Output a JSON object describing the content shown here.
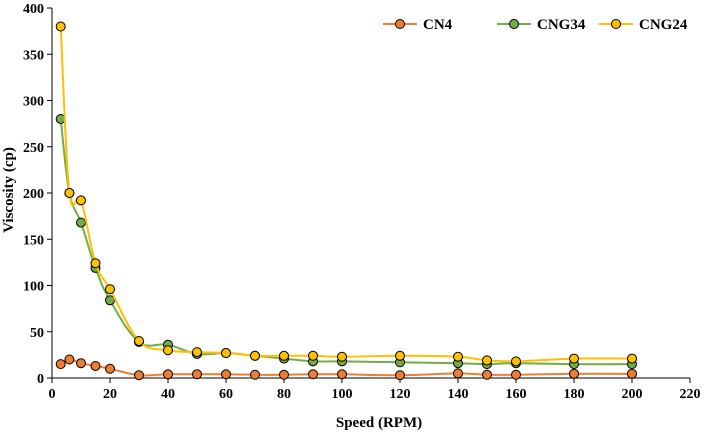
{
  "chart_data": {
    "type": "line",
    "title": "",
    "xlabel": "Speed (RPM)",
    "ylabel": "Viscosity (cp)",
    "xlim": [
      0,
      220
    ],
    "ylim": [
      0,
      400
    ],
    "xticks": [
      0,
      20,
      40,
      60,
      80,
      100,
      120,
      140,
      160,
      180,
      200,
      220
    ],
    "yticks": [
      0,
      50,
      100,
      150,
      200,
      250,
      300,
      350,
      400
    ],
    "grid": false,
    "legend_position": "top-right",
    "series": [
      {
        "name": "CN4",
        "line_color": "#ED7D31",
        "marker_color": "#ED7D31",
        "x": [
          3,
          6,
          10,
          15,
          20,
          30,
          40,
          50,
          60,
          70,
          80,
          90,
          100,
          120,
          140,
          150,
          160,
          180,
          200
        ],
        "y": [
          15,
          20,
          16,
          13,
          10,
          3,
          4,
          4,
          4,
          3.5,
          3.5,
          4,
          4,
          3,
          5,
          3.5,
          3.5,
          4.5,
          4.5
        ]
      },
      {
        "name": "CNG34",
        "line_color": "#70AD47",
        "marker_color": "#70AD47",
        "x": [
          3,
          6,
          10,
          15,
          20,
          30,
          40,
          50,
          60,
          70,
          80,
          90,
          100,
          120,
          140,
          150,
          160,
          180,
          200
        ],
        "y": [
          280,
          200,
          168,
          119,
          84,
          39,
          36,
          26,
          27,
          24,
          21,
          18,
          18,
          17,
          16,
          15,
          16,
          15,
          15
        ]
      },
      {
        "name": "CNG24",
        "line_color": "#FFC000",
        "marker_color": "#FFC000",
        "x": [
          3,
          6,
          10,
          15,
          20,
          30,
          40,
          50,
          60,
          70,
          80,
          90,
          100,
          120,
          140,
          150,
          160,
          180,
          200
        ],
        "y": [
          380,
          200,
          192,
          124,
          96,
          40,
          30,
          28,
          27,
          24,
          24,
          24,
          23,
          24,
          23,
          19,
          18,
          21,
          21
        ]
      }
    ]
  }
}
